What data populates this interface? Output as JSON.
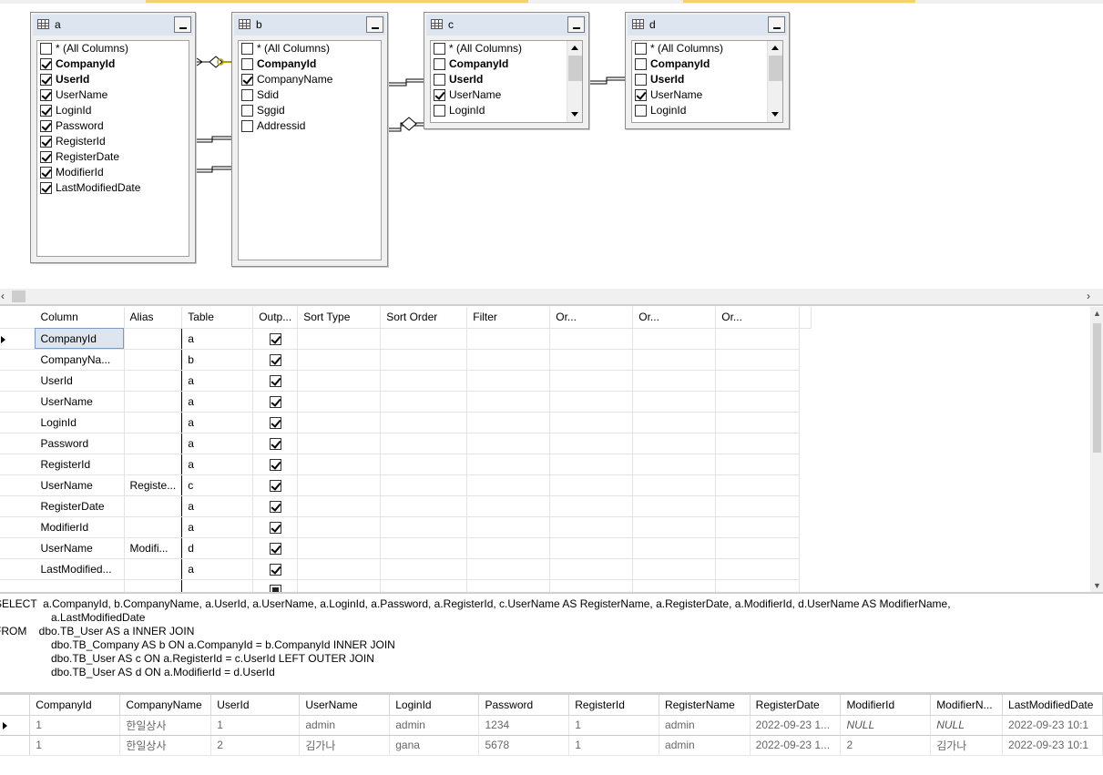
{
  "diagram": {
    "tables": [
      {
        "name": "a",
        "scrollable": false,
        "columns": [
          {
            "label": "* (All Columns)",
            "checked": false,
            "key": false
          },
          {
            "label": "CompanyId",
            "checked": true,
            "key": true
          },
          {
            "label": "UserId",
            "checked": true,
            "key": true
          },
          {
            "label": "UserName",
            "checked": true,
            "key": false
          },
          {
            "label": "LoginId",
            "checked": true,
            "key": false
          },
          {
            "label": "Password",
            "checked": true,
            "key": false
          },
          {
            "label": "RegisterId",
            "checked": true,
            "key": false
          },
          {
            "label": "RegisterDate",
            "checked": true,
            "key": false
          },
          {
            "label": "ModifierId",
            "checked": true,
            "key": false
          },
          {
            "label": "LastModifiedDate",
            "checked": true,
            "key": false
          }
        ]
      },
      {
        "name": "b",
        "scrollable": false,
        "columns": [
          {
            "label": "* (All Columns)",
            "checked": false,
            "key": false
          },
          {
            "label": "CompanyId",
            "checked": false,
            "key": true
          },
          {
            "label": "CompanyName",
            "checked": true,
            "key": false
          },
          {
            "label": "Sdid",
            "checked": false,
            "key": false
          },
          {
            "label": "Sggid",
            "checked": false,
            "key": false
          },
          {
            "label": "Addressid",
            "checked": false,
            "key": false
          }
        ]
      },
      {
        "name": "c",
        "scrollable": true,
        "columns": [
          {
            "label": "* (All Columns)",
            "checked": false,
            "key": false
          },
          {
            "label": "CompanyId",
            "checked": false,
            "key": true
          },
          {
            "label": "UserId",
            "checked": false,
            "key": true
          },
          {
            "label": "UserName",
            "checked": true,
            "key": false
          },
          {
            "label": "LoginId",
            "checked": false,
            "key": false
          }
        ]
      },
      {
        "name": "d",
        "scrollable": true,
        "columns": [
          {
            "label": "* (All Columns)",
            "checked": false,
            "key": false
          },
          {
            "label": "CompanyId",
            "checked": false,
            "key": true
          },
          {
            "label": "UserId",
            "checked": false,
            "key": true
          },
          {
            "label": "UserName",
            "checked": true,
            "key": false
          },
          {
            "label": "LoginId",
            "checked": false,
            "key": false
          }
        ]
      }
    ]
  },
  "criteria": {
    "headers": [
      "Column",
      "Alias",
      "Table",
      "Outp...",
      "Sort Type",
      "Sort Order",
      "Filter",
      "Or...",
      "Or...",
      "Or..."
    ],
    "rows": [
      {
        "column": "CompanyId",
        "alias": "",
        "table": "a",
        "output": "checked"
      },
      {
        "column": "CompanyNa...",
        "alias": "",
        "table": "b",
        "output": "checked"
      },
      {
        "column": "UserId",
        "alias": "",
        "table": "a",
        "output": "checked"
      },
      {
        "column": "UserName",
        "alias": "",
        "table": "a",
        "output": "checked"
      },
      {
        "column": "LoginId",
        "alias": "",
        "table": "a",
        "output": "checked"
      },
      {
        "column": "Password",
        "alias": "",
        "table": "a",
        "output": "checked"
      },
      {
        "column": "RegisterId",
        "alias": "",
        "table": "a",
        "output": "checked"
      },
      {
        "column": "UserName",
        "alias": "Registe...",
        "table": "c",
        "output": "checked"
      },
      {
        "column": "RegisterDate",
        "alias": "",
        "table": "a",
        "output": "checked"
      },
      {
        "column": "ModifierId",
        "alias": "",
        "table": "a",
        "output": "checked"
      },
      {
        "column": "UserName",
        "alias": "Modifi...",
        "table": "d",
        "output": "checked"
      },
      {
        "column": "LastModified...",
        "alias": "",
        "table": "a",
        "output": "checked"
      },
      {
        "column": "",
        "alias": "",
        "table": "",
        "output": "partial"
      }
    ]
  },
  "sql": {
    "lines": [
      "SELECT  a.CompanyId, b.CompanyName, a.UserId, a.UserName, a.LoginId, a.Password, a.RegisterId, c.UserName AS RegisterName, a.RegisterDate, a.ModifierId, d.UserName AS ModifierName,",
      "a.LastModifiedDate",
      "FROM    dbo.TB_User AS a INNER JOIN",
      "dbo.TB_Company AS b ON a.CompanyId = b.CompanyId INNER JOIN",
      "dbo.TB_User AS c ON a.RegisterId = c.UserId LEFT OUTER JOIN",
      "dbo.TB_User AS d ON a.ModifierId = d.UserId"
    ]
  },
  "results": {
    "headers": [
      "CompanyId",
      "CompanyName",
      "UserId",
      "UserName",
      "LoginId",
      "Password",
      "RegisterId",
      "RegisterName",
      "RegisterDate",
      "ModifierId",
      "ModifierN...",
      "LastModifiedDate"
    ],
    "rows": [
      [
        "1",
        "한일상사",
        "1",
        "admin",
        "admin",
        "1234",
        "1",
        "admin",
        "2022-09-23 1...",
        "NULL",
        "NULL",
        "2022-09-23 10:1"
      ],
      [
        "1",
        "한일상사",
        "2",
        "김가나",
        "gana",
        "5678",
        "1",
        "admin",
        "2022-09-23 1...",
        "2",
        "김가나",
        "2022-09-23 10:1"
      ]
    ]
  }
}
